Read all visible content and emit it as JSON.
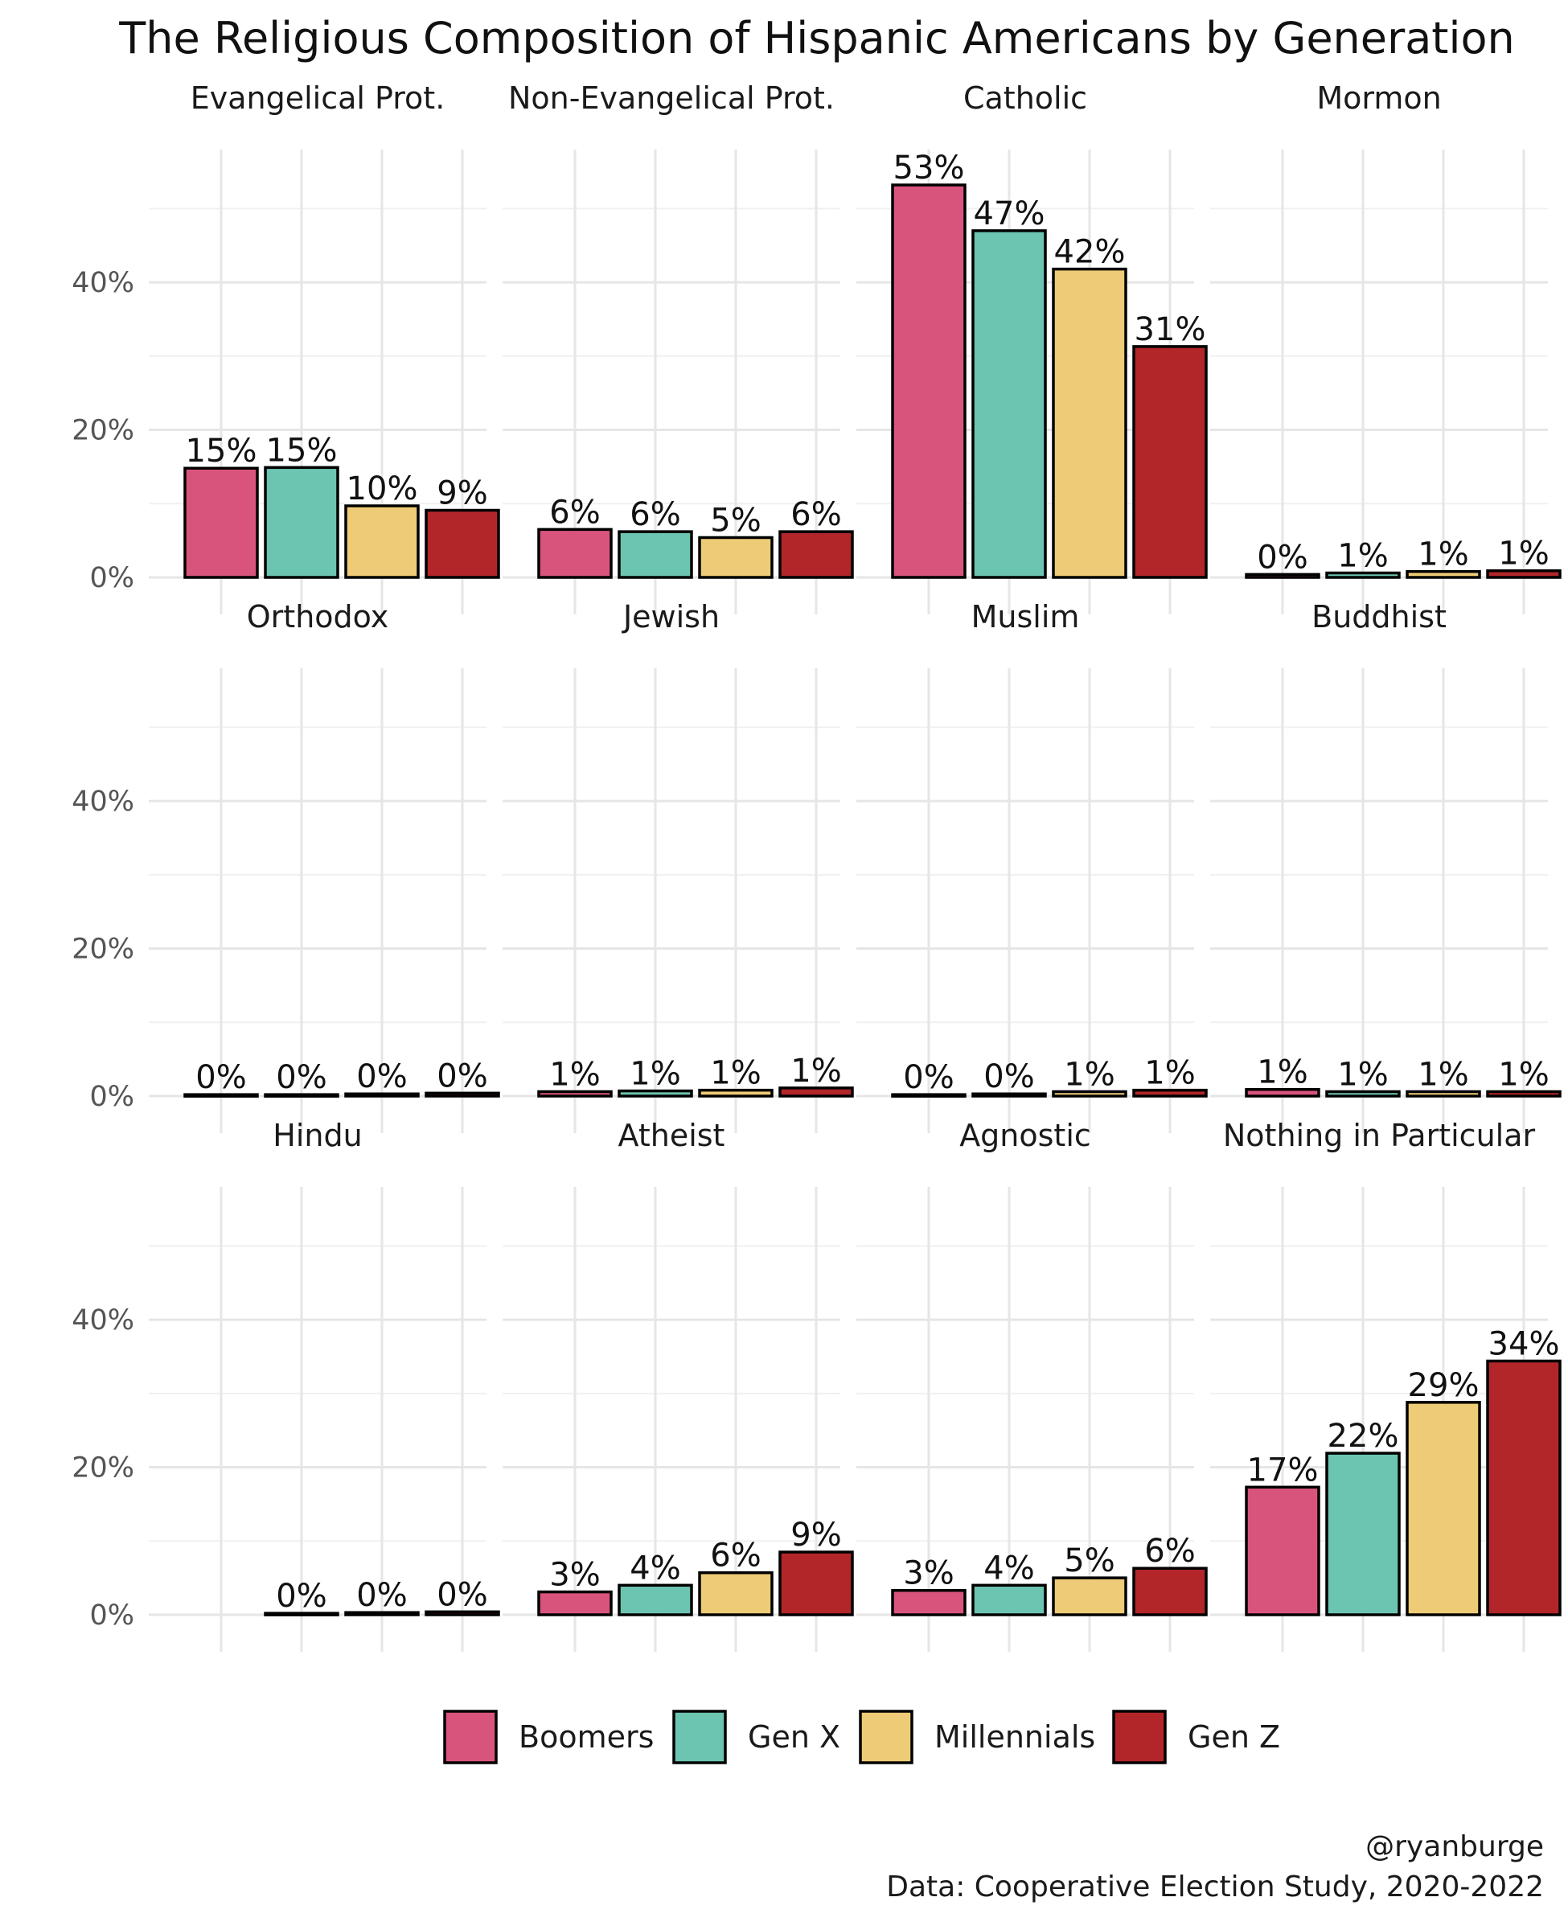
{
  "chart_data": {
    "type": "bar",
    "title": "The Religious Composition of Hispanic Americans by Generation",
    "xlabel": "",
    "ylabel": "",
    "ylim": [
      0,
      0.58
    ],
    "y_ticks": [
      {
        "value": 0,
        "label": "0%"
      },
      {
        "value": 0.2,
        "label": "20%"
      },
      {
        "value": 0.4,
        "label": "40%"
      }
    ],
    "grid": true,
    "legend_position": "bottom",
    "categories": [
      "Boomers",
      "Gen X",
      "Millennials",
      "Gen Z"
    ],
    "series_colors": [
      "#d9547c",
      "#6cc5b0",
      "#eecb76",
      "#b2262a"
    ],
    "facets": [
      {
        "name": "Evangelical Prot.",
        "values": [
          0.148,
          0.149,
          0.097,
          0.091
        ],
        "labels": [
          "15%",
          "15%",
          "10%",
          "9%"
        ]
      },
      {
        "name": "Non-Evangelical Prot.",
        "values": [
          0.065,
          0.062,
          0.054,
          0.062
        ],
        "labels": [
          "6%",
          "6%",
          "5%",
          "6%"
        ]
      },
      {
        "name": "Catholic",
        "values": [
          0.532,
          0.47,
          0.418,
          0.313
        ],
        "labels": [
          "53%",
          "47%",
          "42%",
          "31%"
        ]
      },
      {
        "name": "Mormon",
        "values": [
          0.004,
          0.006,
          0.008,
          0.009
        ],
        "labels": [
          "0%",
          "1%",
          "1%",
          "1%"
        ]
      },
      {
        "name": "Orthodox",
        "values": [
          0.002,
          0.002,
          0.003,
          0.004
        ],
        "labels": [
          "0%",
          "0%",
          "0%",
          "0%"
        ]
      },
      {
        "name": "Jewish",
        "values": [
          0.006,
          0.007,
          0.008,
          0.011
        ],
        "labels": [
          "1%",
          "1%",
          "1%",
          "1%"
        ]
      },
      {
        "name": "Muslim",
        "values": [
          0.002,
          0.003,
          0.006,
          0.008
        ],
        "labels": [
          "0%",
          "0%",
          "1%",
          "1%"
        ]
      },
      {
        "name": "Buddhist",
        "values": [
          0.009,
          0.006,
          0.006,
          0.006
        ],
        "labels": [
          "1%",
          "1%",
          "1%",
          "1%"
        ]
      },
      {
        "name": "Hindu",
        "values": [
          0,
          0.002,
          0.003,
          0.004
        ],
        "labels": [
          "",
          "0%",
          "0%",
          "0%"
        ]
      },
      {
        "name": "Atheist",
        "values": [
          0.031,
          0.04,
          0.057,
          0.085
        ],
        "labels": [
          "3%",
          "4%",
          "6%",
          "9%"
        ]
      },
      {
        "name": "Agnostic",
        "values": [
          0.033,
          0.04,
          0.05,
          0.063
        ],
        "labels": [
          "3%",
          "4%",
          "5%",
          "6%"
        ]
      },
      {
        "name": "Nothing in Particular",
        "values": [
          0.173,
          0.219,
          0.288,
          0.344
        ],
        "labels": [
          "17%",
          "22%",
          "29%",
          "34%"
        ]
      }
    ]
  },
  "caption": {
    "handle": "@ryanburge",
    "source": "Data: Cooperative Election Study, 2020-2022"
  }
}
